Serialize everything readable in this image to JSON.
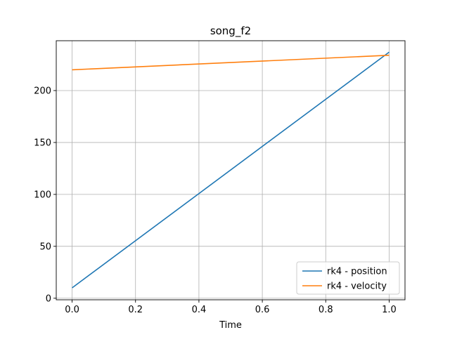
{
  "chart_data": {
    "type": "line",
    "title": "song_f2",
    "xlabel": "Time",
    "ylabel": "",
    "xlim": [
      -0.05,
      1.05
    ],
    "ylim": [
      -1.5,
      248
    ],
    "x_ticks": [
      0.0,
      0.2,
      0.4,
      0.6,
      0.8,
      1.0
    ],
    "x_tick_labels": [
      "0.0",
      "0.2",
      "0.4",
      "0.6",
      "0.8",
      "1.0"
    ],
    "y_ticks": [
      0,
      50,
      100,
      150,
      200
    ],
    "y_tick_labels": [
      "0",
      "50",
      "100",
      "150",
      "200"
    ],
    "grid": true,
    "legend_position": "lower-right",
    "series": [
      {
        "name": "rk4 - position",
        "color": "#1f77b4",
        "x": [
          0.0,
          1.0
        ],
        "y": [
          10,
          237
        ]
      },
      {
        "name": "rk4 - velocity",
        "color": "#ff7f0e",
        "x": [
          0.0,
          1.0
        ],
        "y": [
          220,
          234
        ]
      }
    ]
  }
}
